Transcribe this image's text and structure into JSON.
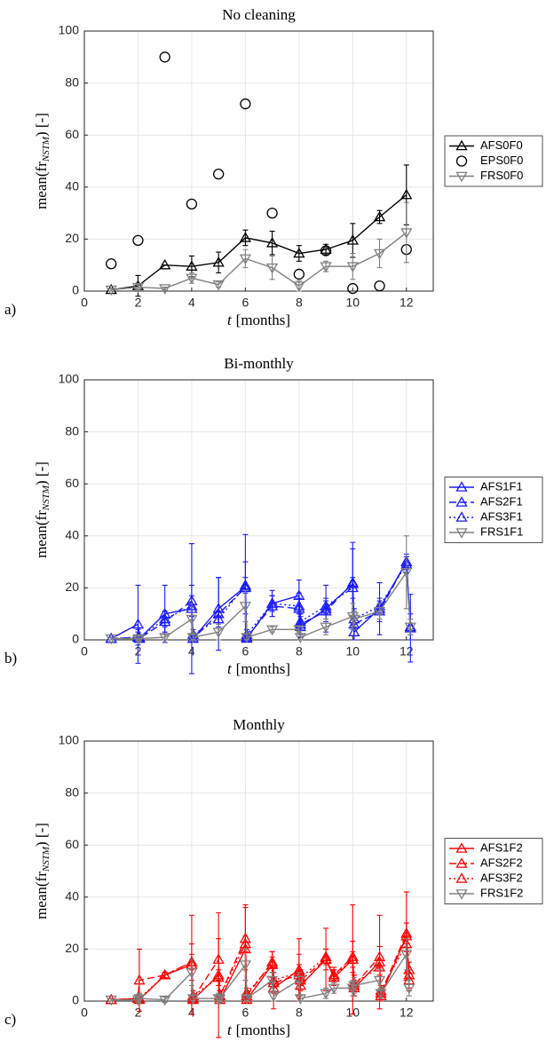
{
  "chart_data": [
    {
      "type": "line",
      "panel_label": "a)",
      "title": "No cleaning",
      "xlabel": {
        "var": "t",
        "unit": "[months]"
      },
      "ylabel": {
        "main": "mean(fr",
        "sub": "NSTM",
        "end": ") [-]"
      },
      "xlim": [
        0,
        13
      ],
      "xticks": [
        0,
        2,
        4,
        6,
        8,
        10,
        12
      ],
      "ylim": [
        0,
        100
      ],
      "yticks": [
        0,
        20,
        40,
        60,
        80,
        100
      ],
      "grid": true,
      "x": [
        1,
        2,
        3,
        4,
        5,
        6,
        7,
        8,
        9,
        10,
        11,
        12
      ],
      "series": [
        {
          "name": "AFS0F0",
          "color": "#000000",
          "marker": "^",
          "linestyle": "solid",
          "values": [
            0.5,
            2,
            10,
            9.5,
            11,
            20.5,
            18.5,
            14.5,
            16,
            19.5,
            28.5,
            37
          ],
          "errors": [
            0.5,
            4,
            0,
            4,
            4,
            3,
            4.5,
            3,
            2,
            6.5,
            2.5,
            11.5
          ]
        },
        {
          "name": "EPS0F0",
          "color": "#000000",
          "marker": "o",
          "linestyle": "none",
          "values": [
            10.5,
            19.5,
            90,
            33.5,
            45,
            72,
            30,
            6.5,
            15.5,
            1,
            2,
            16
          ]
        },
        {
          "name": "FRS0F0",
          "color": "#808080",
          "marker": "v",
          "linestyle": "solid",
          "values": [
            0.5,
            1.5,
            1,
            5,
            2.5,
            12.5,
            9,
            2,
            9.5,
            9.5,
            14.5,
            22.5
          ],
          "errors": [
            0.5,
            1,
            0.5,
            2,
            1,
            3.5,
            4.5,
            2,
            2,
            5,
            5.5,
            11.5
          ]
        }
      ]
    },
    {
      "type": "line",
      "panel_label": "b)",
      "title": "Bi-monthly",
      "xlabel": {
        "var": "t",
        "unit": "[months]"
      },
      "ylabel": {
        "main": "mean(fr",
        "sub": "NSTM",
        "end": ") [-]"
      },
      "xlim": [
        0,
        13
      ],
      "xticks": [
        0,
        2,
        4,
        6,
        8,
        10,
        12
      ],
      "ylim": [
        0,
        100
      ],
      "yticks": [
        0,
        20,
        40,
        60,
        80,
        100
      ],
      "grid": true,
      "x": [
        1,
        2,
        2.05,
        3,
        4,
        4.05,
        5,
        6,
        6.05,
        7,
        8,
        8.05,
        9,
        10,
        10.05,
        11,
        12,
        12.15
      ],
      "series": [
        {
          "name": "AFS1F1",
          "color": "#1a1aff",
          "marker": "^",
          "linestyle": "solid",
          "values": [
            0.5,
            6,
            0.5,
            10,
            12,
            0.5,
            12,
            20.5,
            0.5,
            14,
            17,
            5,
            12,
            21.5,
            3,
            12,
            30,
            4.5
          ],
          "errors": [
            0.5,
            15,
            1,
            11,
            25,
            1,
            12,
            20,
            1,
            5,
            6,
            4,
            9,
            16,
            3,
            10,
            3,
            13
          ]
        },
        {
          "name": "AFS2F1",
          "color": "#1a1aff",
          "marker": "^",
          "linestyle": "dashed",
          "values": [
            0.5,
            1,
            0.5,
            7,
            15,
            0.5,
            10,
            20,
            1,
            13,
            12,
            6,
            11,
            22,
            6,
            11,
            30,
            5
          ],
          "errors": [
            0.5,
            3,
            1,
            4,
            6,
            1,
            14,
            10,
            1,
            4,
            6,
            4,
            4,
            13,
            6,
            4,
            2,
            5
          ]
        },
        {
          "name": "AFS3F1",
          "color": "#1a1aff",
          "marker": "^",
          "linestyle": "dotted",
          "values": [
            0.5,
            1,
            1,
            8,
            13,
            2,
            8,
            21,
            2,
            14,
            13,
            7,
            13,
            20,
            8,
            13,
            29,
            5
          ],
          "errors": [
            0.5,
            2,
            1,
            3,
            4,
            2,
            3,
            3,
            2,
            3,
            3,
            3,
            3,
            4,
            3,
            3,
            3,
            3
          ]
        },
        {
          "name": "FRS1F1",
          "color": "#808080",
          "marker": "v",
          "linestyle": "solid",
          "values": [
            0.5,
            0.5,
            0.5,
            1,
            8,
            1,
            3,
            13,
            1,
            4,
            4,
            1,
            5,
            9,
            8,
            11,
            26,
            5
          ],
          "errors": [
            0.5,
            1,
            1,
            1,
            6,
            1,
            3,
            6,
            1,
            1,
            1,
            1,
            3,
            5,
            3,
            3,
            14,
            3
          ]
        }
      ]
    },
    {
      "type": "line",
      "panel_label": "c)",
      "title": "Monthly",
      "xlabel": {
        "var": "t",
        "unit": "[months]"
      },
      "ylabel": {
        "main": "mean(fr",
        "sub": "NSTM",
        "end": ") [-]"
      },
      "xlim": [
        0,
        13
      ],
      "xticks": [
        0,
        2,
        4,
        6,
        8,
        10,
        12
      ],
      "ylim": [
        0,
        100
      ],
      "yticks": [
        0,
        20,
        40,
        60,
        80,
        100
      ],
      "grid": true,
      "x": [
        1,
        2,
        2.05,
        3,
        4,
        4.05,
        5,
        5.05,
        6,
        6.05,
        7,
        7.05,
        8,
        8.05,
        9,
        9.3,
        10,
        10.05,
        11,
        11.05,
        12,
        12.1
      ],
      "series": [
        {
          "name": "AFS1F2",
          "color": "#ff0000",
          "marker": "^",
          "linestyle": "solid",
          "values": [
            0.5,
            1,
            0.5,
            10,
            14,
            0.5,
            10,
            0.5,
            20,
            0.5,
            14,
            5,
            12,
            6,
            16,
            9,
            16,
            5,
            15,
            2,
            25,
            10
          ],
          "errors": [
            0.5,
            1,
            1,
            1,
            19,
            1,
            24,
            1,
            17,
            1,
            5,
            8,
            12,
            5,
            12,
            3,
            21,
            3,
            18,
            2,
            17,
            5
          ]
        },
        {
          "name": "AFS2F2",
          "color": "#ff0000",
          "marker": "^",
          "linestyle": "dashed",
          "values": [
            0.5,
            1,
            8,
            10,
            15,
            1,
            16,
            2,
            24,
            2,
            15,
            7,
            10,
            8,
            16,
            10,
            17,
            6,
            17,
            3,
            26,
            8
          ],
          "errors": [
            0.5,
            1,
            12,
            1,
            7,
            1,
            8,
            2,
            12,
            2,
            4,
            4,
            8,
            4,
            4,
            2,
            6,
            4,
            4,
            2,
            4,
            4
          ]
        },
        {
          "name": "AFS3F2",
          "color": "#ff0000",
          "marker": "^",
          "linestyle": "dotted",
          "values": [
            0.5,
            1,
            1,
            10,
            15,
            2,
            9,
            2,
            22,
            3,
            14,
            8,
            11,
            9,
            17,
            10,
            16,
            7,
            13,
            4,
            22,
            12
          ],
          "errors": [
            0.5,
            1,
            2,
            1,
            3,
            2,
            3,
            2,
            3,
            2,
            3,
            3,
            3,
            3,
            3,
            3,
            3,
            3,
            3,
            2,
            3,
            3
          ]
        },
        {
          "name": "FRS1F2",
          "color": "#808080",
          "marker": "v",
          "linestyle": "solid",
          "values": [
            0.5,
            0.5,
            1,
            0.5,
            11,
            1,
            1,
            1,
            14,
            1,
            8,
            2,
            8,
            1,
            3,
            5,
            5,
            6,
            8,
            3,
            18,
            5
          ],
          "errors": [
            0.5,
            1,
            2,
            1,
            5,
            1,
            2,
            1,
            6,
            1,
            3,
            2,
            3,
            1,
            2,
            2,
            3,
            3,
            4,
            2,
            6,
            3
          ]
        }
      ]
    }
  ]
}
